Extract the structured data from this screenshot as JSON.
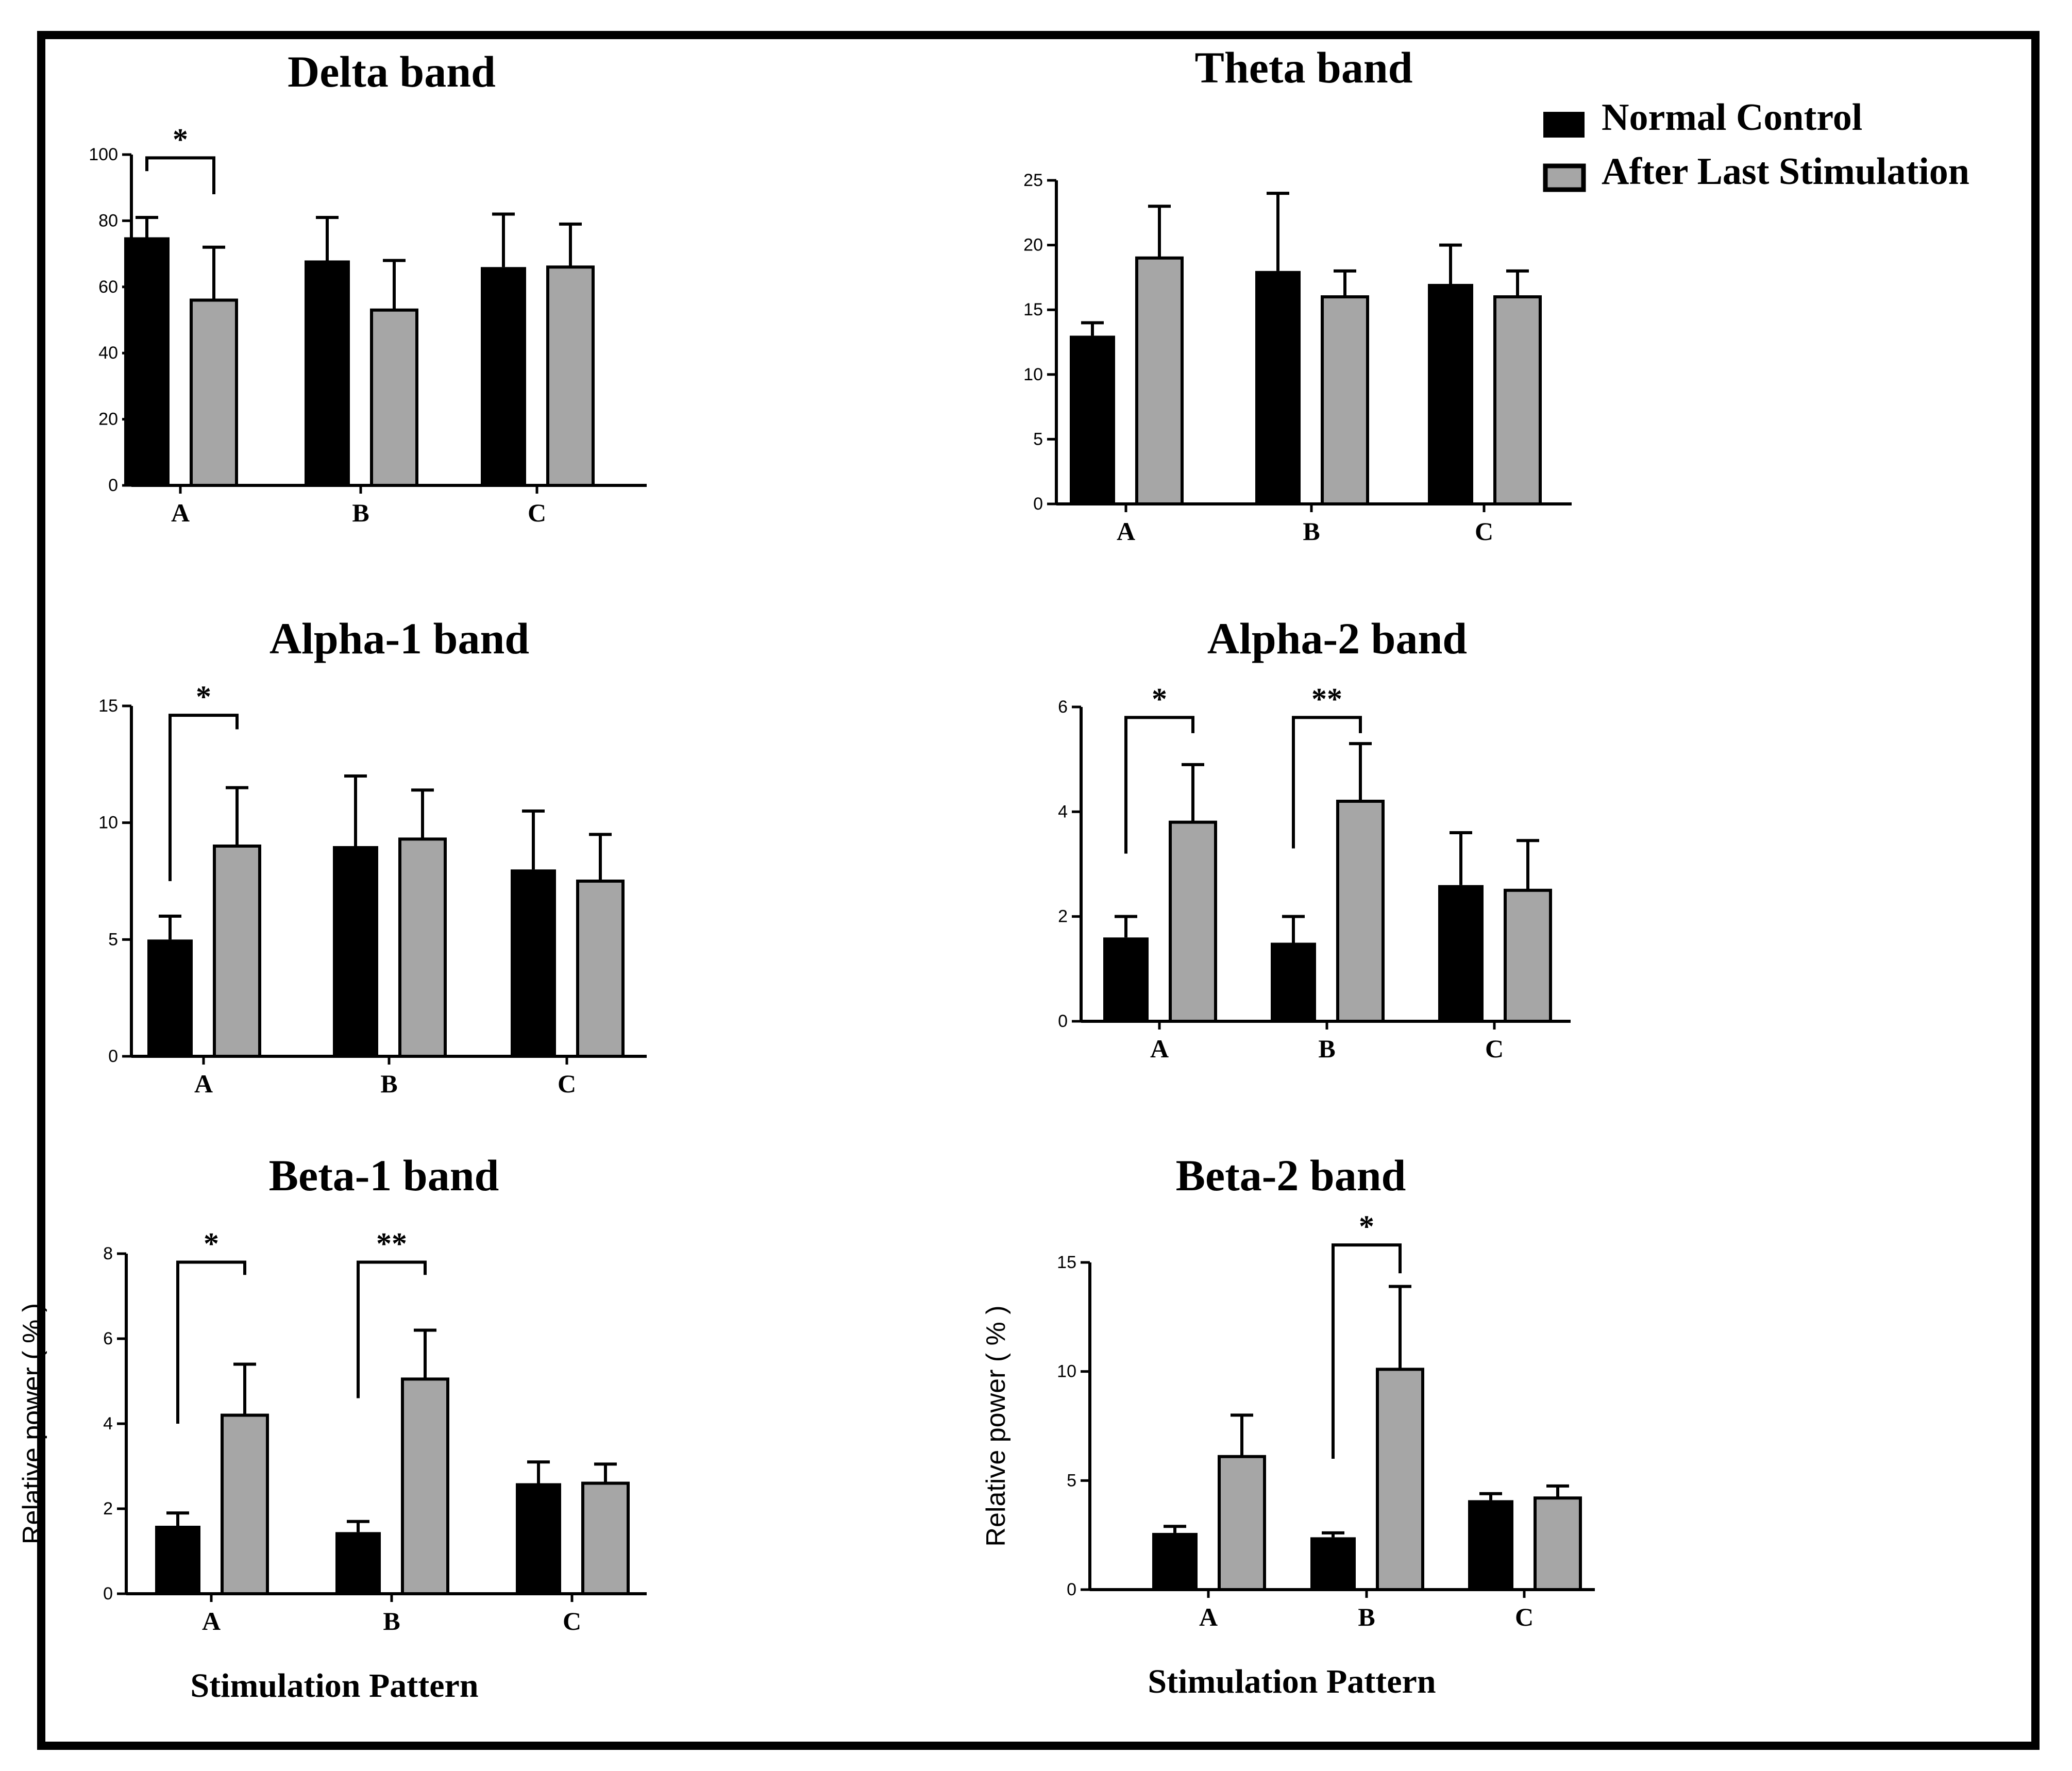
{
  "legend": {
    "entries": [
      {
        "label": "Normal Control",
        "color": "#000000"
      },
      {
        "label": "After Last Stimulation",
        "color": "#a6a6a6"
      }
    ]
  },
  "chart_data": [
    {
      "id": "delta",
      "type": "bar",
      "title": "Delta band",
      "categories": [
        "A",
        "B",
        "C"
      ],
      "ylim": [
        0,
        100
      ],
      "yticks": [
        "0",
        "20",
        "40",
        "60",
        "80",
        "100"
      ],
      "ylabel": "",
      "xlabel": "",
      "series": [
        {
          "name": "Normal Control",
          "values": [
            75,
            68,
            66
          ],
          "errors": [
            6,
            13,
            16
          ]
        },
        {
          "name": "After Last Stimulation",
          "values": [
            56,
            53,
            66
          ],
          "errors": [
            16,
            15,
            13
          ]
        }
      ],
      "significance": [
        {
          "category": "A",
          "label": "*",
          "top": 99,
          "left_drop": 95,
          "right_drop": 88
        }
      ]
    },
    {
      "id": "theta",
      "type": "bar",
      "title": "Theta band",
      "categories": [
        "A",
        "B",
        "C"
      ],
      "ylim": [
        0,
        25
      ],
      "yticks": [
        "0",
        "5",
        "10",
        "15",
        "20",
        "25"
      ],
      "ylabel": "",
      "xlabel": "",
      "series": [
        {
          "name": "Normal Control",
          "values": [
            13,
            18,
            17
          ],
          "errors": [
            1,
            6,
            3
          ]
        },
        {
          "name": "After Last Stimulation",
          "values": [
            19,
            16,
            16
          ],
          "errors": [
            4,
            2,
            2
          ]
        }
      ],
      "significance": []
    },
    {
      "id": "alpha1",
      "type": "bar",
      "title": "Alpha-1 band",
      "categories": [
        "A",
        "B",
        "C"
      ],
      "ylim": [
        0,
        15
      ],
      "yticks": [
        "0",
        "5",
        "10",
        "15"
      ],
      "ylabel": "",
      "xlabel": "",
      "series": [
        {
          "name": "Normal Control",
          "values": [
            5,
            9,
            8
          ],
          "errors": [
            1,
            3,
            2.5
          ]
        },
        {
          "name": "After Last Stimulation",
          "values": [
            9,
            9.3,
            7.5
          ],
          "errors": [
            2.5,
            2.1,
            2
          ]
        }
      ],
      "significance": [
        {
          "category": "A",
          "label": "*",
          "top": 14.6,
          "left_drop": 7.5,
          "right_drop": 14
        }
      ]
    },
    {
      "id": "alpha2",
      "type": "bar",
      "title": "Alpha-2 band",
      "categories": [
        "A",
        "B",
        "C"
      ],
      "ylim": [
        0,
        6
      ],
      "yticks": [
        "0",
        "2",
        "4",
        "6"
      ],
      "ylabel": "",
      "xlabel": "",
      "series": [
        {
          "name": "Normal Control",
          "values": [
            1.6,
            1.5,
            2.6
          ],
          "errors": [
            0.4,
            0.5,
            1
          ]
        },
        {
          "name": "After Last Stimulation",
          "values": [
            3.8,
            4.2,
            2.5
          ],
          "errors": [
            1.1,
            1.1,
            0.95
          ]
        }
      ],
      "significance": [
        {
          "category": "A",
          "label": "*",
          "top": 5.8,
          "left_drop": 3.2,
          "right_drop": 5.5
        },
        {
          "category": "B",
          "label": "**",
          "top": 5.8,
          "left_drop": 3.3,
          "right_drop": 5.5
        }
      ]
    },
    {
      "id": "beta1",
      "type": "bar",
      "title": "Beta-1 band",
      "categories": [
        "A",
        "B",
        "C"
      ],
      "ylim": [
        0,
        8
      ],
      "yticks": [
        "0",
        "2",
        "4",
        "6",
        "8"
      ],
      "ylabel": "Relative  power ( % )",
      "xlabel": "Stimulation Pattern",
      "series": [
        {
          "name": "Normal Control",
          "values": [
            1.6,
            1.45,
            2.6
          ],
          "errors": [
            0.3,
            0.25,
            0.5
          ]
        },
        {
          "name": "After Last Stimulation",
          "values": [
            4.2,
            5.05,
            2.6
          ],
          "errors": [
            1.2,
            1.15,
            0.45
          ]
        }
      ],
      "significance": [
        {
          "category": "A",
          "label": "*",
          "top": 7.8,
          "left_drop": 4,
          "right_drop": 7.5
        },
        {
          "category": "B",
          "label": "**",
          "top": 7.8,
          "left_drop": 4.6,
          "right_drop": 7.5
        }
      ]
    },
    {
      "id": "beta2",
      "type": "bar",
      "title": "Beta-2 band",
      "categories": [
        "A",
        "B",
        "C"
      ],
      "ylim": [
        0,
        15
      ],
      "yticks": [
        "0",
        "5",
        "10",
        "15"
      ],
      "ylabel": "Relative  power ( % )",
      "xlabel": "Stimulation Pattern",
      "series": [
        {
          "name": "Normal Control",
          "values": [
            2.6,
            2.4,
            4.1
          ],
          "errors": [
            0.3,
            0.2,
            0.3
          ]
        },
        {
          "name": "After Last Stimulation",
          "values": [
            6.1,
            10.1,
            4.2
          ],
          "errors": [
            1.9,
            3.8,
            0.55
          ]
        }
      ],
      "significance": [
        {
          "category": "B",
          "label": "*",
          "top": 15.8,
          "left_drop": 6,
          "right_drop": 14.5
        }
      ]
    }
  ]
}
